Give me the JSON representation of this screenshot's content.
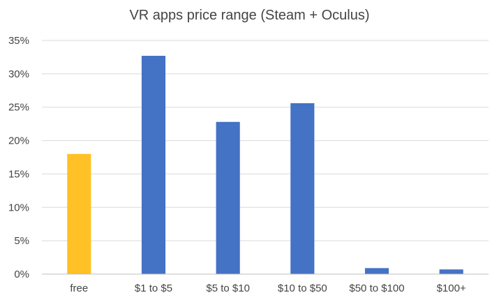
{
  "chart_data": {
    "type": "bar",
    "title": "VR apps price range (Steam + Oculus)",
    "xlabel": "",
    "ylabel": "",
    "categories": [
      "free",
      "$1 to $5",
      "$5 to $10",
      "$10 to $50",
      "$50 to $100",
      "$100+"
    ],
    "values": [
      18.0,
      32.7,
      22.8,
      25.6,
      0.9,
      0.7
    ],
    "ylim": [
      0,
      35
    ],
    "yticks": [
      0,
      5,
      10,
      15,
      20,
      25,
      30,
      35
    ],
    "ytick_labels": [
      "0%",
      "5%",
      "10%",
      "15%",
      "20%",
      "25%",
      "30%",
      "35%"
    ],
    "bar_colors": [
      "#FFC125",
      "#4472C4",
      "#4472C4",
      "#4472C4",
      "#4472C4",
      "#4472C4"
    ],
    "grid": "horizontal",
    "legend": "none"
  }
}
